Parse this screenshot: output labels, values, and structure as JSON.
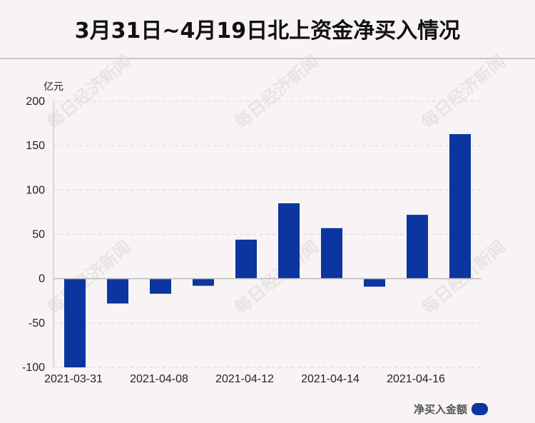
{
  "title": "3月31日~4月19日北上资金净买入情况",
  "unit_label": "亿元",
  "legend": {
    "label": "净买入金额"
  },
  "colors": {
    "bar": "#0c35a0",
    "grid": "#d9d6d8",
    "axis": "#bdbbbc",
    "text": "#222222"
  },
  "chart_data": {
    "type": "bar",
    "title": "3月31日~4月19日北上资金净买入情况",
    "ylabel": "亿元",
    "ylim": [
      -100,
      200
    ],
    "yticks": [
      200,
      150,
      100,
      50,
      0,
      -50,
      -100
    ],
    "x_tick_labels": [
      "2021-03-31",
      "2021-04-08",
      "2021-04-12",
      "2021-04-14",
      "2021-04-16"
    ],
    "series": [
      {
        "name": "净买入金额",
        "values": [
          -100,
          -28,
          -17,
          -8,
          44,
          85,
          57,
          -9,
          72,
          163
        ]
      }
    ],
    "grid": true,
    "legend_position": "bottom-right"
  }
}
